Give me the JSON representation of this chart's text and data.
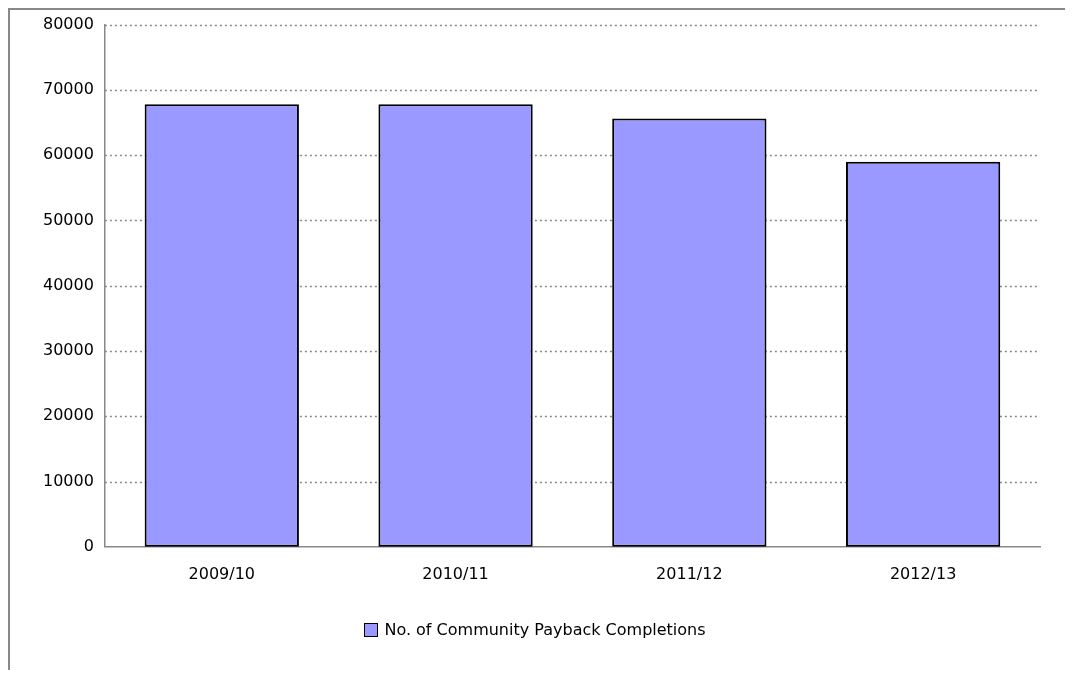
{
  "chart_data": {
    "type": "bar",
    "categories": [
      "2009/10",
      "2010/11",
      "2011/12",
      "2012/13"
    ],
    "series": [
      {
        "name": "No. of Community Payback Completions",
        "color": "#9999ff",
        "values": [
          67800,
          67800,
          65600,
          59000
        ]
      }
    ],
    "ylim": [
      0,
      80000
    ],
    "yticks": [
      0,
      10000,
      20000,
      30000,
      40000,
      50000,
      60000,
      70000,
      80000
    ],
    "grid": "y",
    "legend": "bottom"
  }
}
